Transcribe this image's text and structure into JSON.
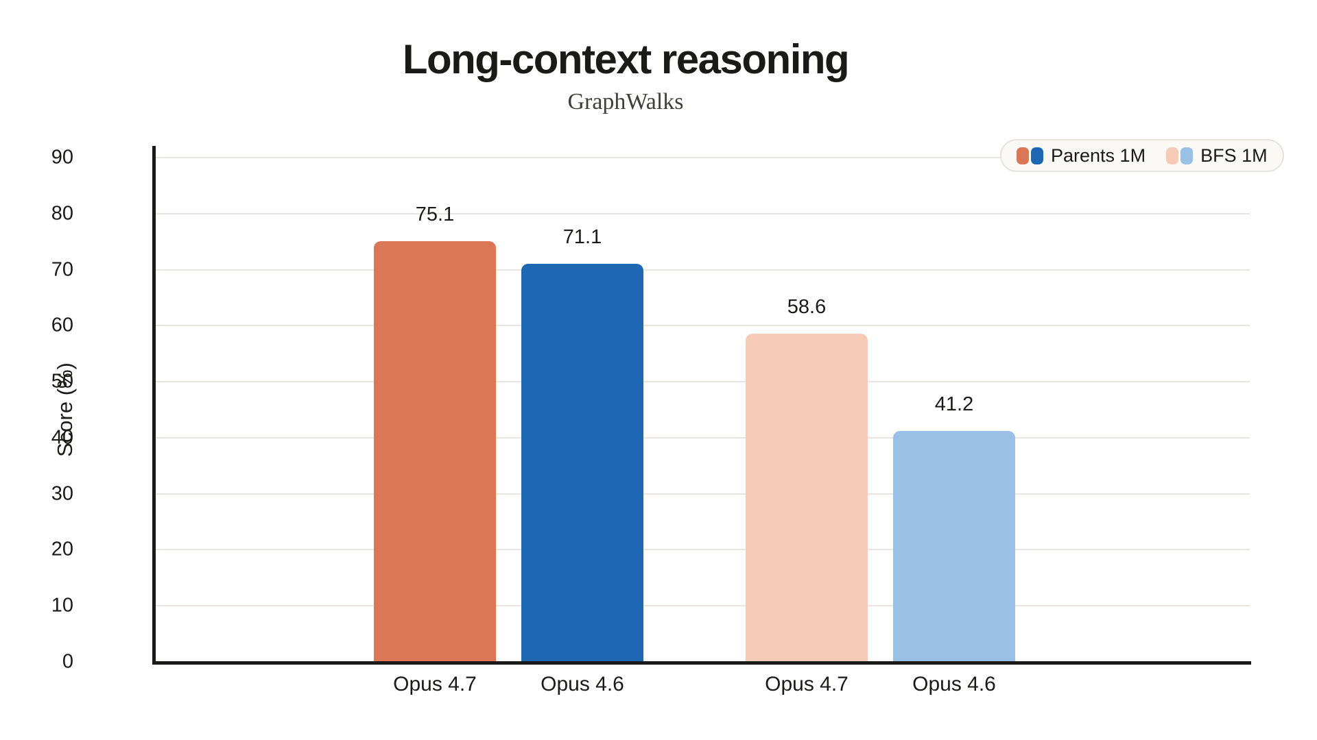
{
  "chart_data": {
    "type": "bar",
    "title": "Long-context reasoning",
    "subtitle": "GraphWalks",
    "ylabel": "Score (%)",
    "xlabel": "",
    "categories": [
      "Opus 4.7",
      "Opus 4.6",
      "Opus 4.7",
      "Opus 4.6"
    ],
    "values": [
      75.1,
      71.1,
      58.6,
      41.2
    ],
    "value_labels": [
      "75.1",
      "71.1",
      "58.6",
      "41.2"
    ],
    "bar_colors": [
      "#D97757",
      "#1E67B3",
      "#F5CBB8",
      "#9AC0E6"
    ],
    "bar_legend_index": [
      0,
      0,
      1,
      1
    ],
    "ylim": [
      0,
      90
    ],
    "yticks": [
      0,
      10,
      20,
      30,
      40,
      50,
      60,
      70,
      80,
      90
    ],
    "grid": true,
    "legend": {
      "position": "top-right",
      "items": [
        {
          "label": "Parents 1M",
          "colors": [
            "#D97757",
            "#1E67B3"
          ]
        },
        {
          "label": "BFS 1M",
          "colors": [
            "#F5CBB8",
            "#9AC0E6"
          ]
        }
      ]
    }
  },
  "colors": {
    "background": "#FFFFFF",
    "axis": "#1A1A19",
    "gridline": "#E8E5E0",
    "text": "#1A1A19",
    "subtitle_text": "#3E3E3A",
    "legend_background": "#FAF9F5",
    "legend_border": "#E5E3DD"
  }
}
